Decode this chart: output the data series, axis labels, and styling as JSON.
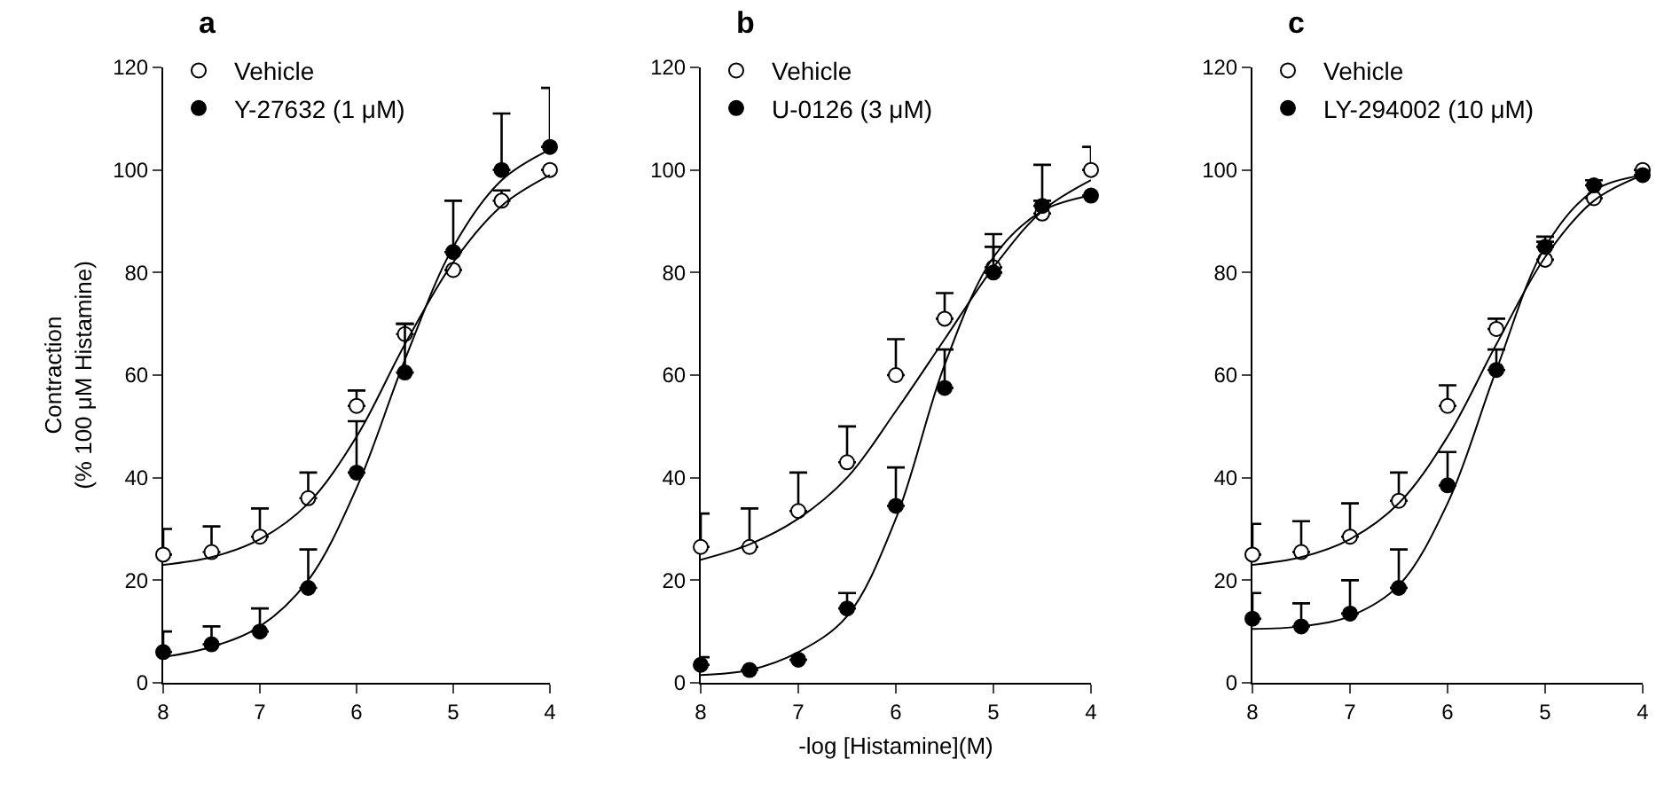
{
  "chart_data": [
    {
      "type": "scatter",
      "title": "a",
      "ylabel": "Contraction\n(% 100 μM Histamine)",
      "xlim": [
        8,
        4
      ],
      "xticks": [
        8,
        7,
        6,
        5,
        4
      ],
      "ylim": [
        0,
        120
      ],
      "yticks": [
        0,
        20,
        40,
        60,
        80,
        100,
        120
      ],
      "grid": false,
      "legend": "top left",
      "marker": "circle",
      "series": [
        {
          "name": "Vehicle",
          "color": "#ffffff",
          "x": [
            8,
            7.5,
            7,
            6.5,
            6,
            5.5,
            5,
            4.5,
            4
          ],
          "values": [
            25,
            25.5,
            28.5,
            36,
            54,
            68,
            80.5,
            94,
            100
          ],
          "errors": [
            [
              25,
              30
            ],
            [
              25.5,
              30.5
            ],
            [
              28.5,
              34
            ],
            [
              36,
              41
            ],
            [
              54,
              57
            ],
            [
              68,
              70
            ],
            null,
            [
              94,
              96
            ],
            null
          ]
        },
        {
          "name": "Y-27632 (1 μM)",
          "color": "#000000",
          "x": [
            8,
            7.5,
            7,
            6.5,
            6,
            5.5,
            5,
            4.5,
            4
          ],
          "values": [
            6,
            7.5,
            10,
            18.5,
            41,
            60.5,
            84,
            100,
            104.5
          ],
          "errors": [
            [
              6,
              10
            ],
            [
              7.5,
              11
            ],
            [
              10,
              14.5
            ],
            [
              18.5,
              26
            ],
            [
              41,
              51
            ],
            [
              60.5,
              70
            ],
            [
              84,
              94
            ],
            [
              100,
              111
            ],
            [
              104.5,
              116
            ]
          ]
        },
        {
          "type": "line",
          "marker": "none",
          "color": "#000000",
          "x": [
            8,
            7.5,
            7,
            6.5,
            6,
            5.5,
            5,
            4.5,
            4
          ],
          "values": [
            23,
            24.5,
            28,
            35,
            48,
            66,
            82,
            93,
            99
          ]
        },
        {
          "type": "line",
          "marker": "none",
          "color": "#000000",
          "x": [
            8,
            7.5,
            7,
            6.5,
            6,
            5.5,
            5,
            4.5,
            4
          ],
          "values": [
            5,
            7,
            11,
            20,
            38,
            63,
            85,
            98,
            104
          ]
        }
      ]
    },
    {
      "type": "scatter",
      "title": "b",
      "xlabel": "-log [Histamine](M)",
      "xlim": [
        8,
        4
      ],
      "xticks": [
        8,
        7,
        6,
        5,
        4
      ],
      "ylim": [
        0,
        120
      ],
      "yticks": [
        0,
        20,
        40,
        60,
        80,
        100,
        120
      ],
      "grid": false,
      "legend": "top left",
      "marker": "circle",
      "series": [
        {
          "name": "Vehicle",
          "color": "#ffffff",
          "x": [
            8,
            7.5,
            7,
            6.5,
            6,
            5.5,
            5,
            4.5,
            4
          ],
          "values": [
            26.5,
            26.5,
            33.5,
            43,
            60,
            71,
            81,
            91.5,
            100
          ],
          "errors": [
            [
              26.5,
              33
            ],
            [
              26.5,
              34
            ],
            [
              33.5,
              41
            ],
            [
              43,
              50
            ],
            [
              60,
              67
            ],
            [
              71,
              76
            ],
            [
              81,
              85
            ],
            [
              91.5,
              94
            ],
            [
              100,
              104.5
            ]
          ]
        },
        {
          "name": "U-0126 (3 μM)",
          "color": "#000000",
          "x": [
            8,
            7.5,
            7,
            6.5,
            6,
            5.5,
            5,
            4.5,
            4
          ],
          "values": [
            3.5,
            2.5,
            4.5,
            14.5,
            34.5,
            57.5,
            80,
            93,
            95
          ],
          "errors": [
            [
              3.5,
              5
            ],
            null,
            null,
            [
              14.5,
              17.5
            ],
            [
              34.5,
              42
            ],
            [
              57.5,
              65
            ],
            [
              80,
              87.5
            ],
            [
              93,
              101
            ],
            null
          ]
        },
        {
          "type": "line",
          "marker": "none",
          "color": "#000000",
          "x": [
            8,
            7.5,
            7,
            6.5,
            6,
            5.5,
            5,
            4.5,
            4
          ],
          "values": [
            24,
            27,
            32,
            40,
            53,
            67,
            81,
            92,
            98
          ]
        },
        {
          "type": "line",
          "marker": "none",
          "color": "#000000",
          "x": [
            8,
            7.5,
            7,
            6.5,
            6,
            5.5,
            5,
            4.5,
            4
          ],
          "values": [
            1.5,
            2.5,
            6,
            13,
            32,
            62,
            83,
            92,
            95
          ]
        }
      ]
    },
    {
      "type": "scatter",
      "title": "c",
      "xlim": [
        8,
        4
      ],
      "xticks": [
        8,
        7,
        6,
        5,
        4
      ],
      "ylim": [
        0,
        120
      ],
      "yticks": [
        0,
        20,
        40,
        60,
        80,
        100,
        120
      ],
      "grid": false,
      "legend": "top left",
      "marker": "circle",
      "series": [
        {
          "name": "Vehicle",
          "color": "#ffffff",
          "x": [
            8,
            7.5,
            7,
            6.5,
            6,
            5.5,
            5,
            4.5,
            4
          ],
          "values": [
            25,
            25.5,
            28.5,
            35.5,
            54,
            69,
            82.5,
            94.5,
            100
          ],
          "errors": [
            [
              25,
              31
            ],
            [
              25.5,
              31.5
            ],
            [
              28.5,
              35
            ],
            [
              35.5,
              41
            ],
            [
              54,
              58
            ],
            [
              69,
              71
            ],
            [
              82.5,
              86
            ],
            null,
            null
          ]
        },
        {
          "name": "LY-294002 (10 μM)",
          "color": "#000000",
          "x": [
            8,
            7.5,
            7,
            6.5,
            6,
            5.5,
            5,
            4.5,
            4
          ],
          "values": [
            12.5,
            11,
            13.5,
            18.5,
            38.5,
            61,
            85,
            97,
            99
          ],
          "errors": [
            [
              12.5,
              17.5
            ],
            [
              11,
              15.5
            ],
            [
              13.5,
              20
            ],
            [
              18.5,
              26
            ],
            [
              38.5,
              45
            ],
            [
              61,
              65
            ],
            [
              85,
              87
            ],
            [
              97,
              98
            ],
            null
          ]
        },
        {
          "type": "line",
          "marker": "none",
          "color": "#000000",
          "x": [
            8,
            7.5,
            7,
            6.5,
            6,
            5.5,
            5,
            4.5,
            4
          ],
          "values": [
            23,
            24.5,
            28,
            35,
            48,
            66,
            83,
            94,
            99
          ]
        },
        {
          "type": "line",
          "marker": "none",
          "color": "#000000",
          "x": [
            8,
            7.5,
            7,
            6.5,
            6,
            5.5,
            5,
            4.5,
            4
          ],
          "values": [
            10.5,
            11,
            13,
            19,
            35,
            61,
            85,
            96,
            99
          ]
        }
      ]
    }
  ]
}
